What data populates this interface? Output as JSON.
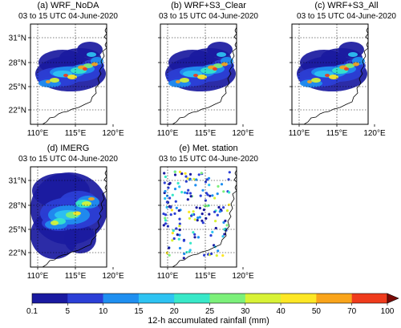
{
  "panels": [
    {
      "id": "a",
      "title": "(a) WRF_NoDA",
      "subtitle": "03 to 15 UTC 04-June-2020",
      "kind": "model",
      "show_lat_labels": true
    },
    {
      "id": "b",
      "title": "(b) WRF+S3_Clear",
      "subtitle": "03 to 15 UTC 04-June-2020",
      "kind": "model",
      "show_lat_labels": false
    },
    {
      "id": "c",
      "title": "(c) WRF+S3_All",
      "subtitle": "03 to 15 UTC 04-June-2020",
      "kind": "model",
      "show_lat_labels": false
    },
    {
      "id": "d",
      "title": "(d) IMERG",
      "subtitle": "03 to 15 UTC 04-June-2020",
      "kind": "satellite",
      "show_lat_labels": true
    },
    {
      "id": "e",
      "title": "(e) Met. station",
      "subtitle": "03 to 15 UTC 04-June-2020",
      "kind": "station",
      "show_lat_labels": false
    }
  ],
  "axes": {
    "lat_ticks": [
      "31°N",
      "28°N",
      "25°N",
      "22°N"
    ],
    "lon_ticks": [
      "110°E",
      "115°E",
      "120°E"
    ]
  },
  "colorbar": {
    "label": "12-h accumulated rainfall (mm)",
    "ticks": [
      "0.1",
      "5",
      "10",
      "15",
      "20",
      "25",
      "30",
      "40",
      "50",
      "70",
      "100"
    ],
    "colors": [
      "#1a1aa0",
      "#2b3fd6",
      "#1f8ff0",
      "#2ec3f2",
      "#38e8c8",
      "#7cf07a",
      "#d8f236",
      "#fde725",
      "#f9a41b",
      "#ef3b1c",
      "#7a0a06"
    ],
    "extend": "max"
  }
}
